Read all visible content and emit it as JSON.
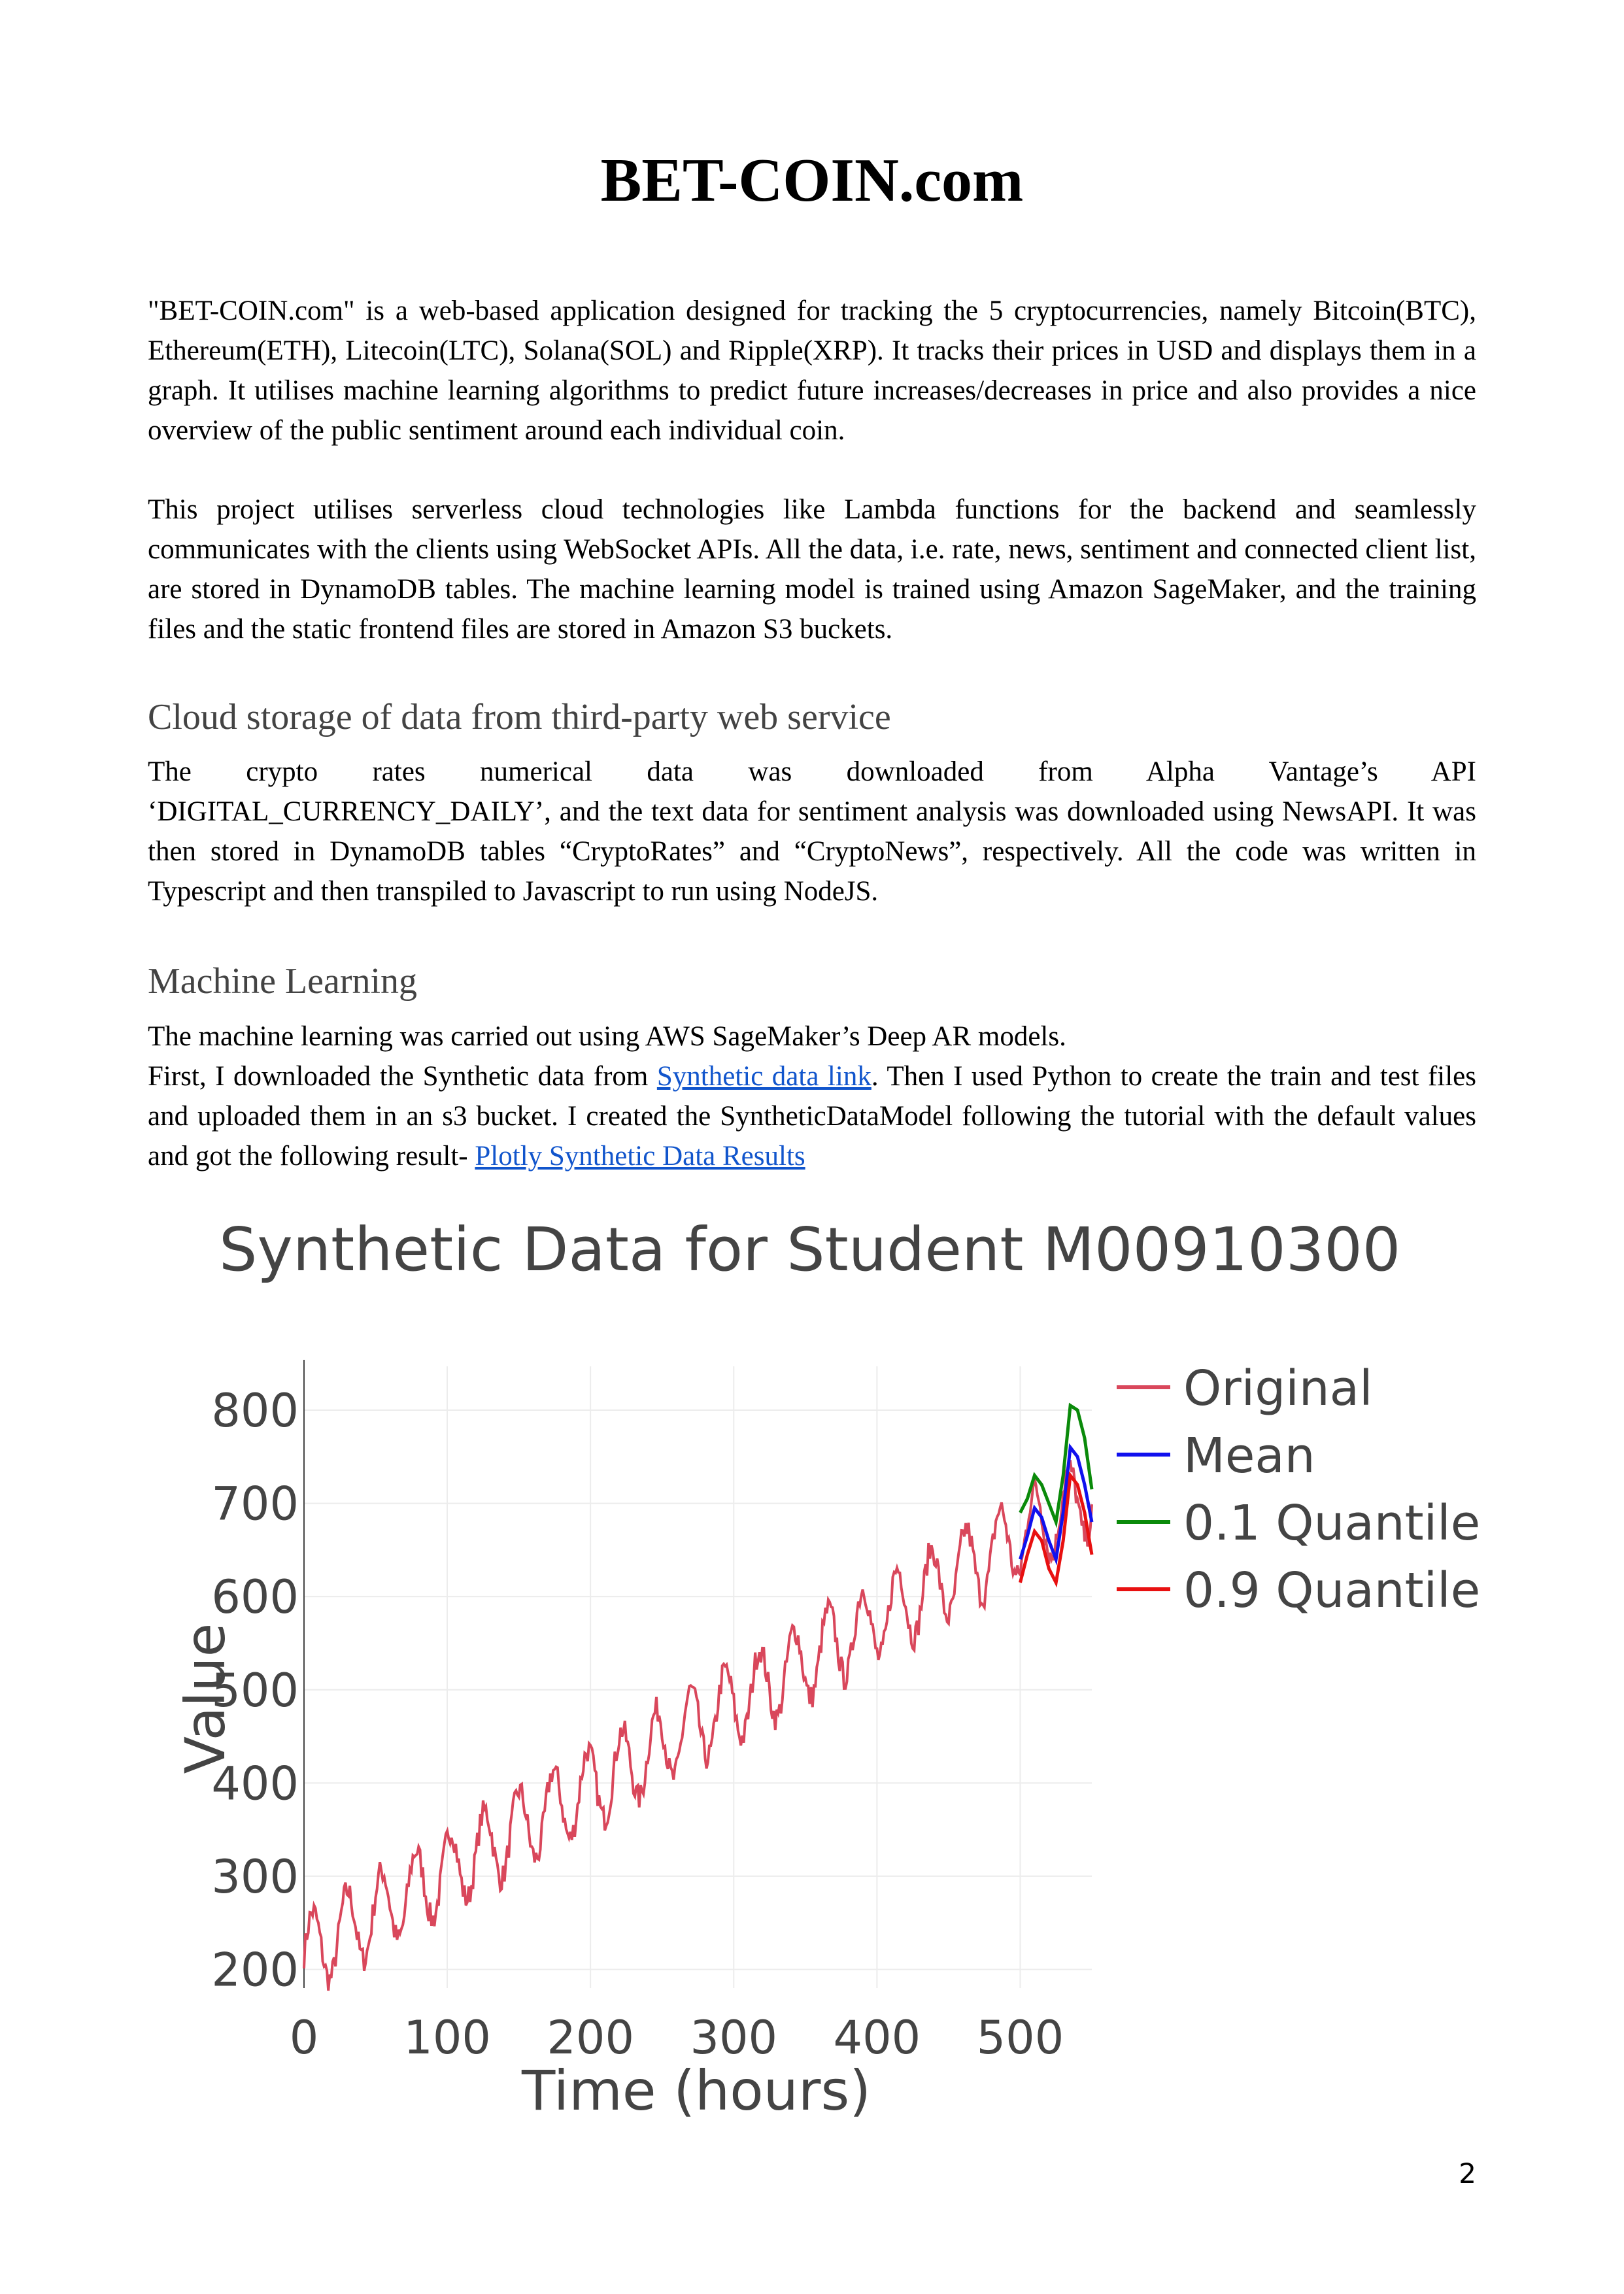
{
  "title": "BET-COIN.com",
  "intro": {
    "p1": "\"BET-COIN.com\" is a web-based application designed for tracking the 5 cryptocurrencies, namely Bitcoin(BTC), Ethereum(ETH), Litecoin(LTC), Solana(SOL) and Ripple(XRP). It tracks their prices in USD and displays them in a graph. It utilises machine learning algorithms to predict future increases/decreases in price and also provides a nice overview of the public sentiment around each individual coin.",
    "p2": "This project utilises serverless cloud technologies like Lambda functions for the backend and seamlessly communicates with the clients using WebSocket APIs. All the data, i.e. rate, news, sentiment and connected client list, are stored in DynamoDB tables. The machine learning model is trained using Amazon SageMaker, and the training files and the static frontend files are stored in Amazon S3 buckets."
  },
  "section_cloud": {
    "heading": "Cloud storage of data from third-party web service",
    "p1_line1": "The crypto rates numerical data was downloaded from Alpha Vantage’s API",
    "p1_rest": "‘DIGITAL_CURRENCY_DAILY’, and the text data for sentiment analysis was downloaded using NewsAPI. It was then stored in DynamoDB tables “CryptoRates” and “CryptoNews”, respectively. All the code was written in Typescript and then transpiled to Javascript to run using NodeJS."
  },
  "section_ml": {
    "heading": "Machine Learning",
    "line1": "The machine learning was carried out using AWS SageMaker’s Deep AR models.",
    "p2_a": "First, I downloaded the Synthetic data from ",
    "link1": "Synthetic data link",
    "p2_b": ". Then I used Python to create the train and test files and uploaded them in an s3 bucket. I created the SyntheticDataModel following the tutorial with the default values and got the following result- ",
    "link2": "Plotly Synthetic Data Results"
  },
  "chart_data": {
    "type": "line",
    "title": "Synthetic Data for Student M00910300",
    "xlabel": "Time (hours)",
    "ylabel": "Value",
    "xlim": [
      0,
      550
    ],
    "ylim": [
      180,
      840
    ],
    "xticks": [
      0,
      100,
      200,
      300,
      400,
      500
    ],
    "yticks": [
      200,
      300,
      400,
      500,
      600,
      700,
      800
    ],
    "grid": true,
    "legend_position": "right",
    "original_generator": {
      "hours": 550,
      "trend_start": 215,
      "trend_slope": 0.9,
      "seasonal_amplitude": 42,
      "period_hours": 24
    },
    "series": [
      {
        "name": "Original",
        "color": "#d9475b"
      },
      {
        "name": "Mean",
        "color": "#1010ee",
        "x": [
          500,
          505,
          510,
          515,
          520,
          525,
          530,
          535,
          540,
          545,
          550
        ],
        "values": [
          640,
          665,
          695,
          685,
          660,
          640,
          690,
          760,
          750,
          720,
          680
        ]
      },
      {
        "name": "0.1 Quantile",
        "color": "#0a8a0a",
        "x": [
          500,
          505,
          510,
          515,
          520,
          525,
          530,
          535,
          540,
          545,
          550
        ],
        "values": [
          690,
          705,
          730,
          720,
          700,
          680,
          730,
          805,
          800,
          770,
          715
        ]
      },
      {
        "name": "0.9 Quantile",
        "color": "#e81010",
        "x": [
          500,
          505,
          510,
          515,
          520,
          525,
          530,
          535,
          540,
          545,
          550
        ],
        "values": [
          615,
          645,
          670,
          660,
          630,
          615,
          660,
          730,
          720,
          690,
          645
        ]
      }
    ]
  },
  "page_number": "2"
}
